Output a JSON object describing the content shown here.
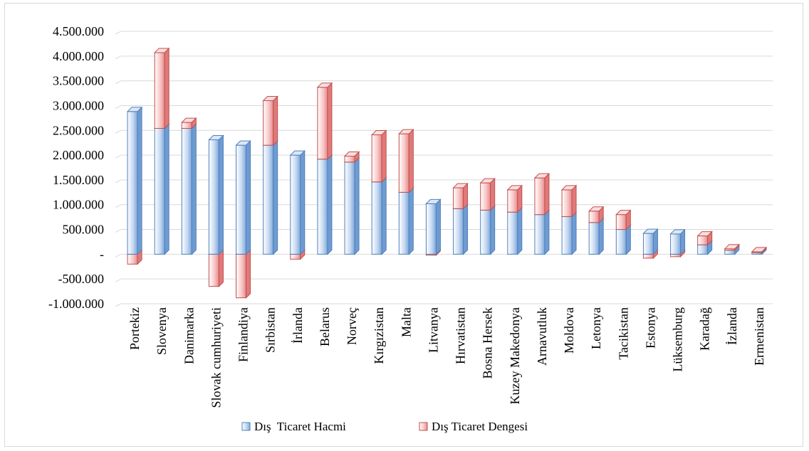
{
  "chart_data": {
    "type": "bar",
    "stacked": true,
    "style": "3d-column",
    "categories": [
      "Portekiz",
      "Slovenya",
      "Danimarka",
      "Slovak cumhuriyeti",
      "Finlandiya",
      "Sırbistan",
      "İrlanda",
      "Belarus",
      "Norveç",
      "Kırgızistan",
      "Malta",
      "Litvanya",
      "Hırvatistan",
      "Bosna Hersek",
      "Kuzey Makedonya",
      "Arnavutluk",
      "Moldova",
      "Letonya",
      "Tacikistan",
      "Estonya",
      "Lüksemburg",
      "Karadağ",
      "İzlanda",
      "Ermenistan"
    ],
    "series": [
      {
        "name": "Dış  Ticaret Hacmi",
        "color": "#8db4e2",
        "values": [
          2880000,
          2540000,
          2540000,
          2310000,
          2200000,
          2200000,
          2000000,
          1920000,
          1860000,
          1460000,
          1250000,
          1020000,
          920000,
          890000,
          850000,
          800000,
          760000,
          640000,
          500000,
          420000,
          410000,
          190000,
          80000,
          30000
        ]
      },
      {
        "name": "Dış Ticaret Dengesi",
        "color": "#f4a7a7",
        "values": [
          -200000,
          1530000,
          120000,
          -650000,
          -880000,
          900000,
          -100000,
          1450000,
          120000,
          950000,
          1180000,
          -20000,
          420000,
          550000,
          450000,
          740000,
          540000,
          230000,
          300000,
          -80000,
          -50000,
          180000,
          30000,
          20000
        ]
      }
    ],
    "y_ticks": [
      "4.500.000",
      "4.000.000",
      "3.500.000",
      "3.000.000",
      "2.500.000",
      "2.000.000",
      "1.500.000",
      "1.000.000",
      "500.000",
      "-",
      "-500.000",
      "-1.000.000"
    ],
    "ylim": [
      -1000000,
      4500000
    ],
    "grid": true,
    "legend": "bottom"
  }
}
